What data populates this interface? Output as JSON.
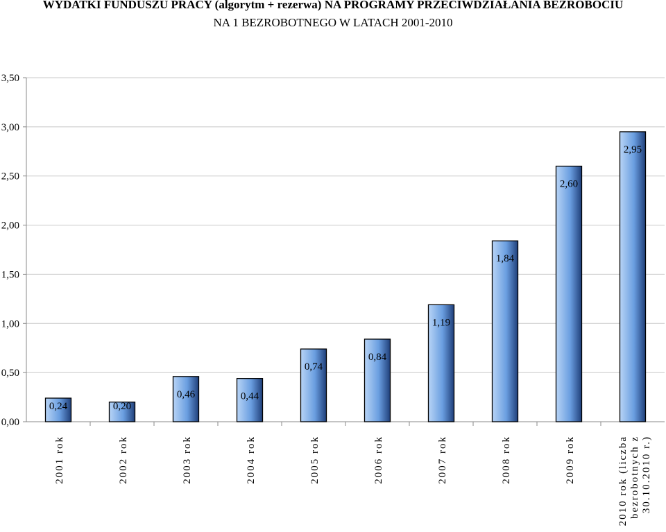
{
  "title_line1": "WYDATKI FUNDUSZU PRACY (algorytm + rezerwa) NA PROGRAMY PRZECIWDZIAŁANIA BEZROBOCIU",
  "title_line2": "NA 1 BEZROBOTNEGO W LATACH 2001-2010",
  "colors": {
    "bar_light": "#b8d4f6",
    "bar_mid": "#6a9ee0",
    "bar_dark": "#1f3f7a",
    "grid": "#c8c8c8",
    "axis": "#888888"
  },
  "chart_data": {
    "type": "bar",
    "title": "WYDATKI FUNDUSZU PRACY (algorytm + rezerwa) NA PROGRAMY PRZECIWDZIAŁANIA BEZROBOCIU NA 1 BEZROBOTNEGO W LATACH 2001-2010",
    "categories": [
      "2001 rok",
      "2002 rok",
      "2003 rok",
      "2004 rok",
      "2005 rok",
      "2006 rok",
      "2007 rok",
      "2008 rok",
      "2009 rok",
      "2010 rok (liczba bezrobotnych z 30.10.2010 r.)"
    ],
    "values": [
      0.24,
      0.2,
      0.46,
      0.44,
      0.74,
      0.84,
      1.19,
      1.84,
      2.6,
      2.95
    ],
    "value_labels": [
      "0,24",
      "0,20",
      "0,46",
      "0,44",
      "0,74",
      "0,84",
      "1,19",
      "1,84",
      "2,60",
      "2,95"
    ],
    "ylim": [
      0,
      3.5
    ],
    "yticks": [
      0,
      0.5,
      1.0,
      1.5,
      2.0,
      2.5,
      3.0,
      3.5
    ],
    "ytick_labels": [
      "0,00",
      "0,50",
      "1,00",
      "1,50",
      "2,00",
      "2,50",
      "3,00",
      "3,50"
    ],
    "grid": true,
    "legend": "none"
  }
}
